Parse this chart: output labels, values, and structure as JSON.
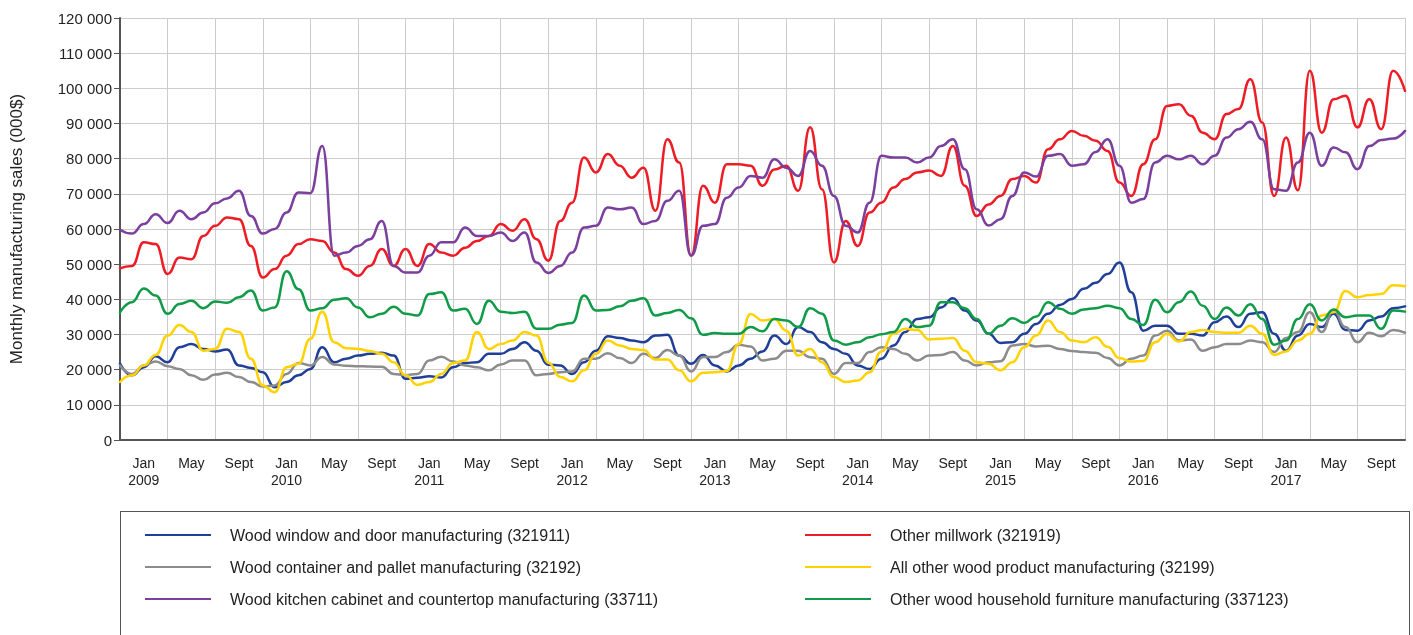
{
  "chart_data": {
    "type": "line",
    "ylabel": "Monthly manufacturing sales (000$)",
    "categories": [
      null,
      null,
      "Jan\n2009",
      null,
      null,
      null,
      "May",
      null,
      null,
      null,
      "Sept",
      null,
      null,
      null,
      "Jan\n2010",
      null,
      null,
      null,
      "May",
      null,
      null,
      null,
      "Sept",
      null,
      null,
      null,
      "Jan\n2011",
      null,
      null,
      null,
      "May",
      null,
      null,
      null,
      "Sept",
      null,
      null,
      null,
      "Jan\n2012",
      null,
      null,
      null,
      "May",
      null,
      null,
      null,
      "Sept",
      null,
      null,
      null,
      "Jan\n2013",
      null,
      null,
      null,
      "May",
      null,
      null,
      null,
      "Sept",
      null,
      null,
      null,
      "Jan\n2014",
      null,
      null,
      null,
      "May",
      null,
      null,
      null,
      "Sept",
      null,
      null,
      null,
      "Jan\n2015",
      null,
      null,
      null,
      "May",
      null,
      null,
      null,
      "Sept",
      null,
      null,
      null,
      "Jan\n2016",
      null,
      null,
      null,
      "May",
      null,
      null,
      null,
      "Sept",
      null,
      null,
      null,
      "Jan\n2017",
      null,
      null,
      null,
      "May",
      null,
      null,
      null,
      "Sept",
      null,
      null
    ],
    "series": [
      {
        "name": "Wood window and door manufacturing (321911)",
        "color": "#1f3f99",
        "values": [
          21700,
          18400,
          20700,
          23800,
          22100,
          26400,
          27300,
          25900,
          25200,
          25700,
          21200,
          20500,
          19300,
          15000,
          16500,
          18400,
          20200,
          26400,
          22100,
          23100,
          24000,
          24500,
          24800,
          24000,
          17400,
          17700,
          18100,
          17800,
          20700,
          21900,
          22100,
          24500,
          24500,
          25900,
          27800,
          25400,
          21400,
          21200,
          18800,
          22100,
          25400,
          29500,
          29000,
          28300,
          27800,
          29700,
          29900,
          24000,
          21700,
          24200,
          21200,
          19500,
          21200,
          23100,
          25200,
          29700,
          27300,
          32100,
          30700,
          27800,
          25900,
          24500,
          21200,
          20200,
          23100,
          26900,
          30700,
          34400,
          34900,
          37700,
          40300,
          36800,
          34000,
          30200,
          27600,
          27800,
          30200,
          33000,
          35900,
          38400,
          40100,
          43000,
          44700,
          47200,
          50500,
          42000,
          31100,
          32500,
          32500,
          30200,
          30200,
          29700,
          33500,
          35100,
          32100,
          35900,
          36300,
          30200,
          25400,
          29700,
          33000,
          32100,
          35900,
          31300,
          31100,
          34000,
          35100,
          37500,
          38000
        ]
      },
      {
        "name": "Other millwork (321919)",
        "color": "#ee1c25",
        "values": [
          48800,
          49500,
          56200,
          55700,
          47200,
          51900,
          51400,
          58000,
          60900,
          63300,
          62800,
          55200,
          46200,
          48600,
          52400,
          55700,
          57100,
          56600,
          53300,
          48600,
          46700,
          49500,
          54300,
          49500,
          54300,
          49500,
          55700,
          53300,
          52400,
          54700,
          56600,
          58000,
          61400,
          59500,
          62800,
          57100,
          51000,
          62300,
          67500,
          80300,
          76100,
          81300,
          78000,
          74600,
          77400,
          65200,
          85500,
          78900,
          52400,
          72300,
          67500,
          78400,
          78400,
          78000,
          72300,
          76900,
          78000,
          70900,
          88900,
          71300,
          50500,
          62300,
          55200,
          64700,
          67500,
          71800,
          74200,
          76100,
          76600,
          75100,
          83600,
          72300,
          63700,
          67000,
          69400,
          74200,
          75100,
          73200,
          82700,
          85500,
          87900,
          86500,
          85100,
          82200,
          73200,
          69400,
          78400,
          85500,
          95000,
          95500,
          92200,
          87400,
          85500,
          92700,
          94100,
          102600,
          90300,
          69400,
          86000,
          71000,
          105000,
          87400,
          96900,
          97900,
          88900,
          96900,
          88400,
          105000,
          99300
        ]
      },
      {
        "name": "Wood container and pallet manufacturing (32192)",
        "color": "#8c8c8c",
        "values": [
          21200,
          18800,
          21200,
          22300,
          21000,
          20200,
          18400,
          17100,
          18600,
          19100,
          17900,
          16500,
          15200,
          15500,
          18800,
          21900,
          21200,
          23600,
          21500,
          21100,
          21000,
          20900,
          20800,
          18800,
          18400,
          18800,
          22600,
          23700,
          22300,
          21200,
          20700,
          19800,
          21500,
          22600,
          22600,
          18400,
          18800,
          19300,
          19500,
          23100,
          23100,
          24700,
          23300,
          21900,
          24500,
          23300,
          25600,
          24000,
          19500,
          23600,
          23600,
          25000,
          27100,
          26600,
          22600,
          23100,
          25400,
          25400,
          23500,
          23100,
          18800,
          21900,
          21900,
          25000,
          26400,
          25900,
          24500,
          22600,
          24000,
          24200,
          25000,
          22600,
          21200,
          22100,
          22400,
          26900,
          27300,
          26600,
          26800,
          25900,
          25300,
          25000,
          24800,
          23300,
          21200,
          23100,
          24000,
          29700,
          31100,
          28300,
          28600,
          25400,
          26400,
          27300,
          27300,
          28300,
          27800,
          25000,
          29000,
          30700,
          36300,
          30700,
          36800,
          32100,
          27800,
          30500,
          29500,
          31300,
          30500
        ]
      },
      {
        "name": "All other wood product manufacturing (32199)",
        "color": "#ffd200",
        "values": [
          16500,
          18400,
          21200,
          24200,
          29700,
          32700,
          30700,
          25400,
          25900,
          31600,
          30700,
          23100,
          15500,
          13600,
          20700,
          21700,
          28800,
          36500,
          27800,
          26100,
          25900,
          25300,
          24500,
          22100,
          18400,
          15700,
          16500,
          18800,
          21900,
          22600,
          30700,
          25900,
          27300,
          28300,
          30700,
          29700,
          22000,
          17900,
          16700,
          19800,
          24500,
          28300,
          26900,
          25900,
          25600,
          22900,
          22900,
          19800,
          16700,
          19100,
          19300,
          19600,
          27300,
          35800,
          34000,
          34400,
          31100,
          24000,
          25900,
          22100,
          17900,
          16500,
          16900,
          19300,
          25200,
          30200,
          31600,
          31300,
          28600,
          28800,
          29000,
          25400,
          22100,
          21700,
          19800,
          22100,
          26400,
          29700,
          34000,
          30700,
          28300,
          27800,
          29200,
          26500,
          23300,
          22300,
          22500,
          27800,
          30200,
          28000,
          30700,
          31300,
          30700,
          30500,
          30500,
          32500,
          30200,
          24200,
          25200,
          28300,
          30200,
          35400,
          36300,
          42400,
          40600,
          41200,
          41500,
          44000,
          43700
        ]
      },
      {
        "name": "Wood kitchen cabinet and countertop manufacturing (33711)",
        "color": "#7b3f9e",
        "values": [
          59800,
          58700,
          61400,
          64200,
          61700,
          65200,
          62800,
          64700,
          67300,
          68700,
          70900,
          63700,
          58700,
          60000,
          64700,
          70400,
          70200,
          83600,
          52400,
          53300,
          55200,
          57100,
          62300,
          49500,
          47600,
          47600,
          52400,
          56200,
          56200,
          60400,
          58000,
          58000,
          59000,
          56600,
          59000,
          50500,
          47500,
          49500,
          53300,
          60400,
          60900,
          66100,
          65600,
          66100,
          61400,
          62300,
          68000,
          70900,
          52400,
          60900,
          61400,
          68900,
          71800,
          75100,
          74600,
          79800,
          77400,
          75100,
          82200,
          78000,
          69400,
          60900,
          59000,
          67500,
          80800,
          80300,
          80300,
          78900,
          80300,
          83600,
          85500,
          77000,
          65600,
          61000,
          62800,
          69400,
          76100,
          74900,
          80800,
          81300,
          78000,
          78400,
          81900,
          85500,
          78000,
          67500,
          68500,
          78900,
          80800,
          79800,
          80800,
          78400,
          80800,
          86000,
          88400,
          90500,
          85500,
          71300,
          70900,
          78900,
          87400,
          78000,
          83200,
          81800,
          77000,
          83600,
          85300,
          85700,
          87900
        ]
      },
      {
        "name": "Other wood household furniture manufacturing (337123)",
        "color": "#0f9b48",
        "values": [
          36300,
          39200,
          43100,
          41100,
          35900,
          38700,
          39600,
          37500,
          39400,
          39000,
          40600,
          42500,
          36800,
          37700,
          48000,
          42900,
          36800,
          37500,
          39900,
          40300,
          37700,
          34900,
          35900,
          37900,
          35900,
          35400,
          41500,
          42000,
          36800,
          37300,
          33000,
          39600,
          36500,
          36100,
          36500,
          31600,
          31600,
          32800,
          33300,
          41100,
          36800,
          37000,
          38000,
          39600,
          40300,
          35400,
          36100,
          37000,
          34600,
          29900,
          30400,
          30200,
          30200,
          32100,
          30900,
          34400,
          34000,
          32100,
          37500,
          35900,
          28300,
          27100,
          27800,
          29200,
          30100,
          30700,
          34400,
          32100,
          32500,
          39200,
          39200,
          37500,
          34400,
          30200,
          32500,
          34600,
          33300,
          35100,
          39200,
          37300,
          35900,
          37100,
          37500,
          38200,
          37500,
          34400,
          32700,
          39900,
          36300,
          39200,
          42200,
          38200,
          34400,
          37700,
          35400,
          38600,
          34400,
          27100,
          28300,
          34400,
          38600,
          34000,
          37100,
          34900,
          35400,
          35400,
          31600,
          36800,
          36500
        ]
      }
    ],
    "ylim": [
      0,
      120000
    ],
    "yticks": [
      {
        "value": 0,
        "label": "0"
      },
      {
        "value": 10000,
        "label": "10 000"
      },
      {
        "value": 20000,
        "label": "20 000"
      },
      {
        "value": 30000,
        "label": "30 000"
      },
      {
        "value": 40000,
        "label": "40 000"
      },
      {
        "value": 50000,
        "label": "50 000"
      },
      {
        "value": 60000,
        "label": "60 000"
      },
      {
        "value": 70000,
        "label": "70 000"
      },
      {
        "value": 80000,
        "label": "80 000"
      },
      {
        "value": 90000,
        "label": "90 000"
      },
      {
        "value": 100000,
        "label": "100 000"
      },
      {
        "value": 110000,
        "label": "110 000"
      },
      {
        "value": 120000,
        "label": "120 000"
      }
    ],
    "grid": true,
    "legend": "bottom",
    "marker": "none",
    "line_style": "solid"
  }
}
